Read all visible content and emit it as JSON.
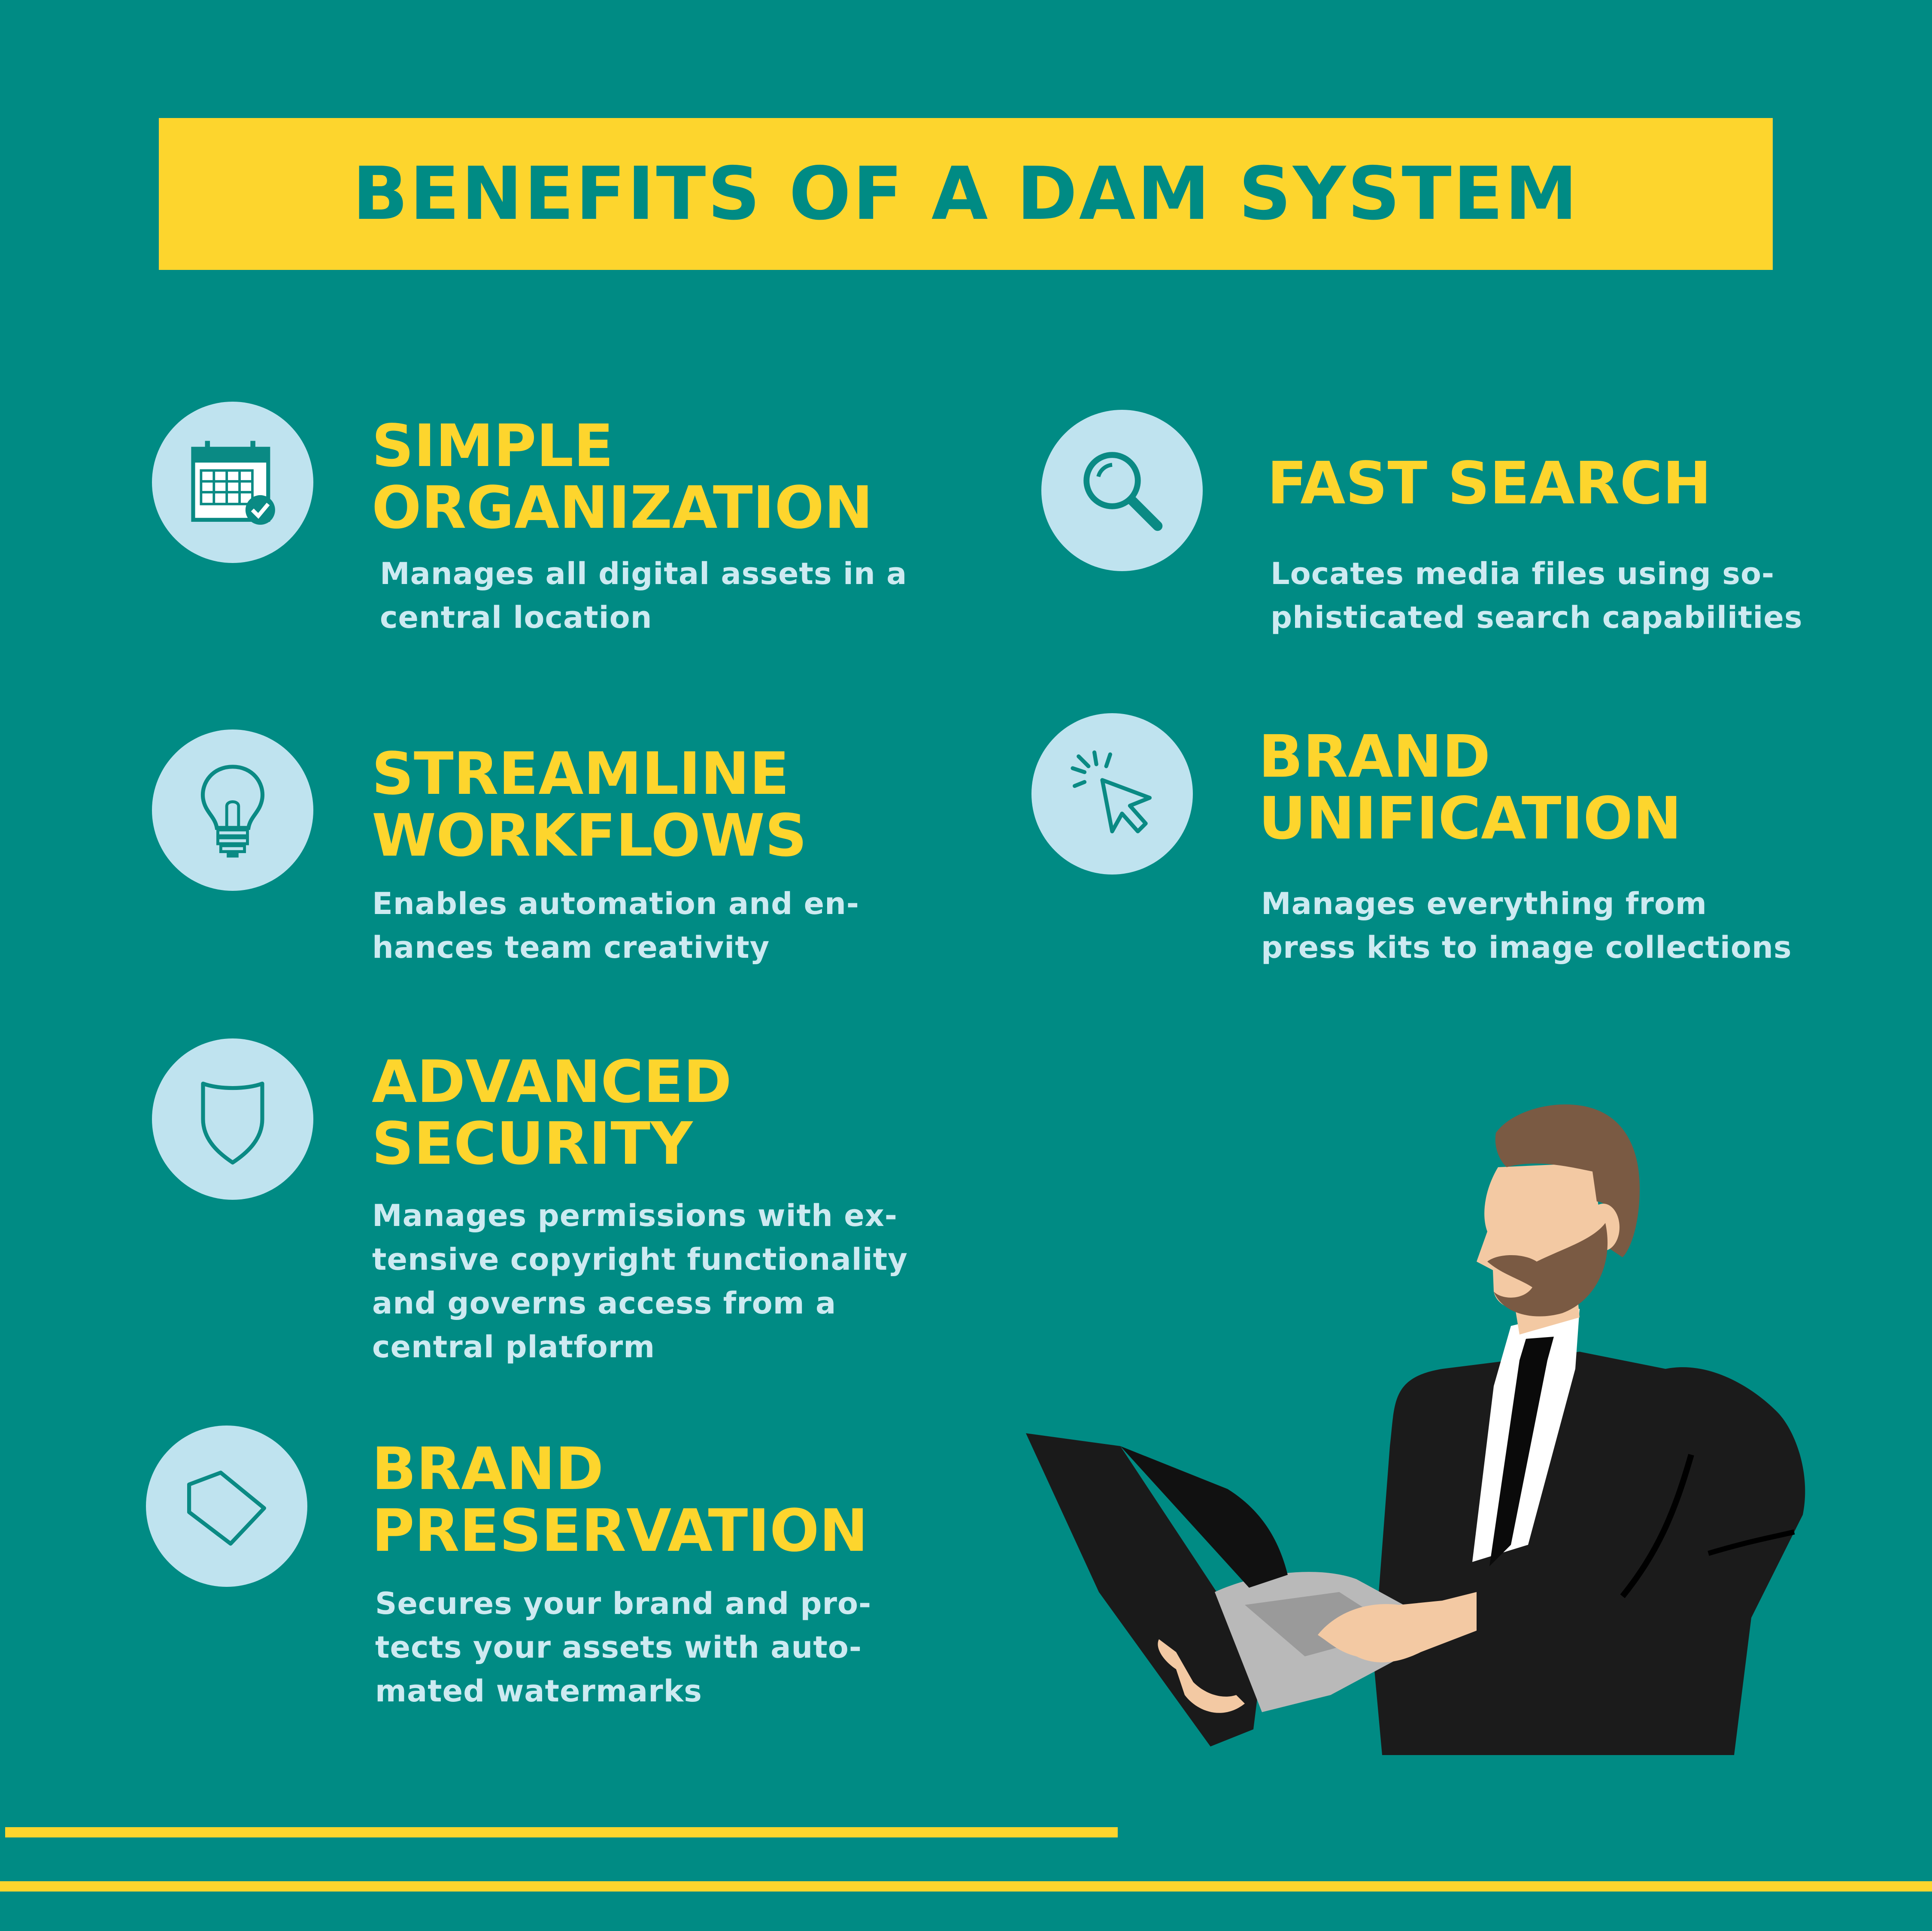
{
  "title": "BENEFITS OF A DAM SYSTEM",
  "colors": {
    "background": "#008b84",
    "accent_yellow": "#fdd52d",
    "icon_circle": "#bfe3ef",
    "text_light": "#cdeaf1"
  },
  "benefits": [
    {
      "icon": "calendar-icon",
      "title_lines": [
        "SIMPLE",
        "ORGANIZATION"
      ],
      "desc_lines": [
        "Manages all digital assets in a",
        "central location"
      ]
    },
    {
      "icon": "magnifier-icon",
      "title_lines": [
        "FAST SEARCH"
      ],
      "desc_lines": [
        "Locates media files using so-",
        "phisticated search capabilities"
      ]
    },
    {
      "icon": "lightbulb-icon",
      "title_lines": [
        "STREAMLINE",
        "WORKFLOWS"
      ],
      "desc_lines": [
        "Enables automation and en-",
        "hances team creativity"
      ]
    },
    {
      "icon": "cursor-click-icon",
      "title_lines": [
        "BRAND",
        "UNIFICATION"
      ],
      "desc_lines": [
        "Manages everything from",
        "press kits to image collections"
      ]
    },
    {
      "icon": "shield-icon",
      "title_lines": [
        "ADVANCED",
        "SECURITY"
      ],
      "desc_lines": [
        "Manages permissions with ex-",
        "tensive copyright functionality",
        "and governs access from a",
        "central platform"
      ]
    },
    {
      "icon": "tag-icon",
      "title_lines": [
        "BRAND",
        "PRESERVATION"
      ],
      "desc_lines": [
        "Secures your brand and pro-",
        "tects your assets with auto-",
        "mated watermarks"
      ]
    }
  ]
}
